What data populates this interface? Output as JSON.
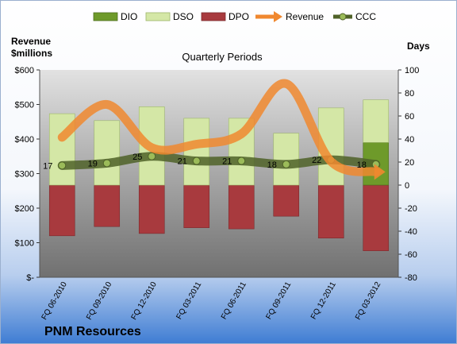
{
  "company": "PNM Resources",
  "chart_data": {
    "type": "bar",
    "title": "Quarterly Periods",
    "left_axis_label_line1": "Revenue",
    "left_axis_label_line2": "$millions",
    "right_axis_label": "Days",
    "categories": [
      "FQ 06-2010",
      "FQ 09-2010",
      "FQ 12-2010",
      "FQ 03-2011",
      "FQ 06-2011",
      "FQ 09-2011",
      "FQ 12-2011",
      "FQ 03-2012"
    ],
    "left_ylim": [
      0,
      600
    ],
    "left_ticks": [
      0,
      100,
      200,
      300,
      400,
      500,
      600
    ],
    "left_tick_labels": [
      "$-",
      "$100",
      "$200",
      "$300",
      "$400",
      "$500",
      "$600"
    ],
    "right_ylim": [
      -80,
      100
    ],
    "right_ticks": [
      -80,
      -60,
      -40,
      -20,
      0,
      20,
      40,
      60,
      80,
      100
    ],
    "right_tick_labels": [
      "-80",
      "-60",
      "-40",
      "-20",
      "0",
      "20",
      "40",
      "60",
      "80",
      "100"
    ],
    "legend": [
      "DIO",
      "DSO",
      "DPO",
      "Revenue",
      "CCC"
    ],
    "legend_position": "top",
    "series": [
      {
        "name": "DIO",
        "axis": "right",
        "kind": "stacked_bar",
        "color": "#6E9A2A",
        "values": [
          0,
          0,
          0,
          0,
          0,
          0,
          0,
          37
        ]
      },
      {
        "name": "DSO",
        "axis": "right",
        "kind": "stacked_bar",
        "color": "#D4E7A6",
        "values": [
          62,
          56,
          68,
          58,
          58,
          45,
          67,
          37
        ]
      },
      {
        "name": "DPO",
        "axis": "right",
        "kind": "negative_bar",
        "color": "#A83A3E",
        "values": [
          -44,
          -36,
          -42,
          -37,
          -38,
          -27,
          -46,
          -57
        ]
      },
      {
        "name": "Revenue",
        "axis": "left",
        "kind": "line",
        "color": "#F0882F",
        "values": [
          405,
          500,
          375,
          385,
          415,
          560,
          335,
          305
        ]
      },
      {
        "name": "CCC",
        "axis": "right",
        "kind": "line_markers",
        "color": "#4F6228",
        "values": [
          17,
          19,
          25,
          21,
          21,
          18,
          22,
          18
        ]
      }
    ],
    "data_labels": [
      "17",
      "19",
      "25",
      "21",
      "21",
      "18",
      "22",
      "18"
    ],
    "grid": false
  }
}
